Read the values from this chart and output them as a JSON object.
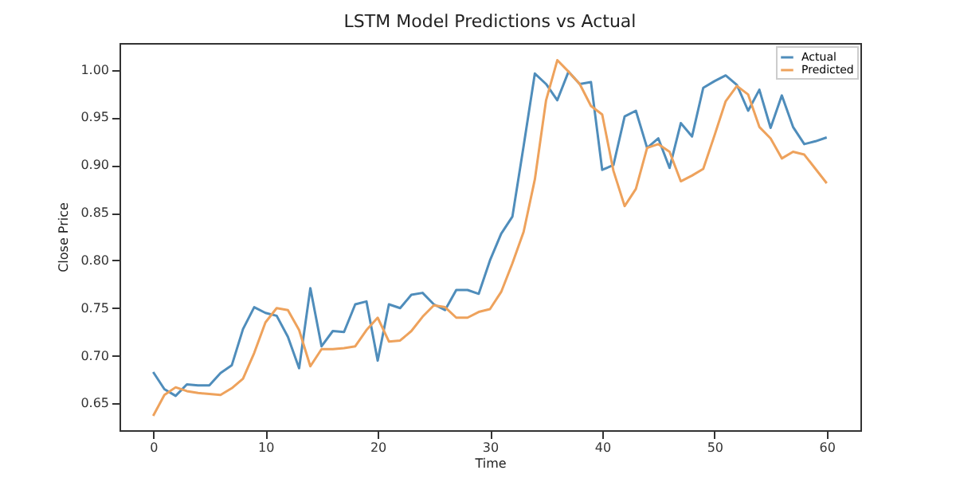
{
  "chart_data": {
    "type": "line",
    "title": "LSTM Model Predictions vs Actual",
    "xlabel": "Time",
    "ylabel": "Close Price",
    "x": [
      0,
      1,
      2,
      3,
      4,
      5,
      6,
      7,
      8,
      9,
      10,
      11,
      12,
      13,
      14,
      15,
      16,
      17,
      18,
      19,
      20,
      21,
      22,
      23,
      24,
      25,
      26,
      27,
      28,
      29,
      30,
      31,
      32,
      33,
      34,
      35,
      36,
      37,
      38,
      39,
      40,
      41,
      42,
      43,
      44,
      45,
      46,
      47,
      48,
      49,
      50,
      51,
      52,
      53,
      54,
      55,
      56,
      57,
      58,
      59,
      60
    ],
    "series": [
      {
        "name": "Actual",
        "color": "#4f8dbb",
        "values": [
          0.683,
          0.665,
          0.658,
          0.67,
          0.669,
          0.669,
          0.682,
          0.69,
          0.728,
          0.751,
          0.745,
          0.742,
          0.72,
          0.687,
          0.771,
          0.71,
          0.726,
          0.725,
          0.754,
          0.757,
          0.695,
          0.754,
          0.75,
          0.764,
          0.766,
          0.754,
          0.748,
          0.769,
          0.769,
          0.765,
          0.8,
          0.828,
          0.846,
          0.92,
          0.996,
          0.985,
          0.968,
          0.998,
          0.985,
          0.987,
          0.895,
          0.9,
          0.951,
          0.957,
          0.918,
          0.928,
          0.897,
          0.944,
          0.93,
          0.981,
          0.988,
          0.994,
          0.984,
          0.957,
          0.979,
          0.939,
          0.973,
          0.94,
          0.922,
          0.925,
          0.929
        ]
      },
      {
        "name": "Predicted",
        "color": "#eea25c",
        "values": [
          0.637,
          0.659,
          0.667,
          0.663,
          0.661,
          0.66,
          0.659,
          0.666,
          0.676,
          0.703,
          0.735,
          0.75,
          0.748,
          0.727,
          0.689,
          0.707,
          0.707,
          0.708,
          0.71,
          0.727,
          0.74,
          0.715,
          0.716,
          0.726,
          0.741,
          0.753,
          0.751,
          0.74,
          0.74,
          0.746,
          0.749,
          0.767,
          0.797,
          0.83,
          0.885,
          0.968,
          1.01,
          0.998,
          0.985,
          0.962,
          0.953,
          0.894,
          0.857,
          0.875,
          0.918,
          0.922,
          0.914,
          0.883,
          0.889,
          0.896,
          0.931,
          0.967,
          0.983,
          0.974,
          0.94,
          0.928,
          0.907,
          0.914,
          0.911,
          0.896,
          0.881
        ]
      }
    ],
    "xlim": [
      -3,
      63
    ],
    "xticks": [
      0,
      10,
      20,
      30,
      40,
      50,
      60
    ],
    "ylim": [
      0.622,
      1.028
    ],
    "yticks": [
      0.65,
      {
        "value": 0.7,
        "label": "0.70"
      },
      0.75,
      {
        "value": 0.8,
        "label": "0.80"
      },
      0.85,
      {
        "value": 0.9,
        "label": "0.90"
      },
      0.95,
      {
        "value": 1.0,
        "label": "1.00"
      }
    ],
    "legend": "top right",
    "grid": false,
    "marker": "none",
    "line_style": "solid"
  }
}
